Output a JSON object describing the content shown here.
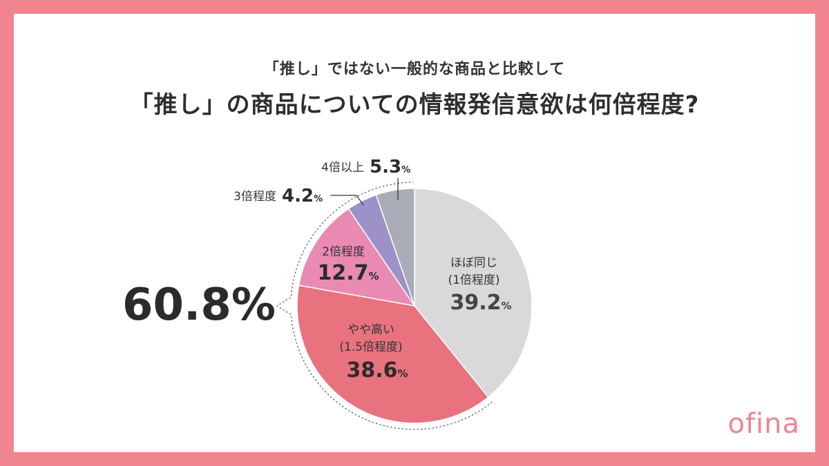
{
  "header": {
    "subtitle": "「推し」ではない一般的な商品と比較して",
    "title": "「推し」の商品についての情報発信意欲は何倍程度?"
  },
  "chart_data": {
    "type": "pie",
    "slices": [
      {
        "label": "ほぼ同じ",
        "sublabel": "(1倍程度)",
        "value": 39.2,
        "display": "39.2",
        "color": "#D9D9DA"
      },
      {
        "label": "やや高い",
        "sublabel": "(1.5倍程度)",
        "value": 38.6,
        "display": "38.6",
        "color": "#E8727E"
      },
      {
        "label": "2倍程度",
        "sublabel": "",
        "value": 12.7,
        "display": "12.7",
        "color": "#E98AB3"
      },
      {
        "label": "3倍程度",
        "sublabel": "",
        "value": 4.2,
        "display": "4.2",
        "color": "#9C92C8"
      },
      {
        "label": "4倍以上",
        "sublabel": "",
        "value": 5.3,
        "display": "5.3",
        "color": "#A9ABB7"
      }
    ],
    "unit": "%",
    "callout": {
      "value": "60.8%"
    }
  },
  "brand": {
    "logo": "ofina",
    "color": "#F0848F"
  }
}
